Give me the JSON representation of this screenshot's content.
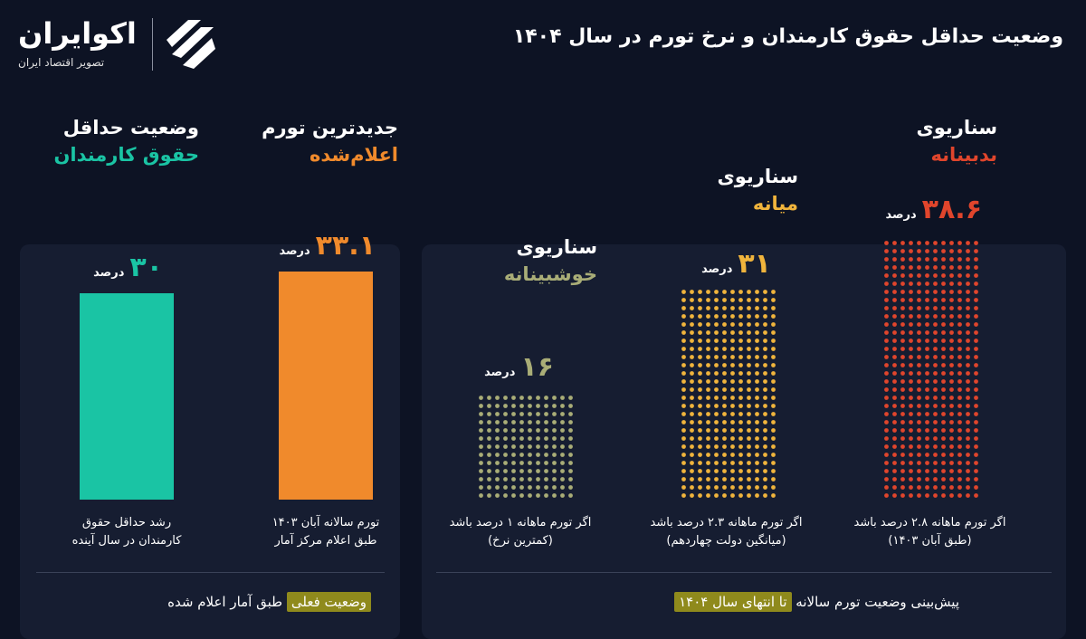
{
  "header": {
    "title": "وضعیت حداقل حقوق کارمندان و نرخ تورم در سال ۱۴۰۴",
    "brand_name": "اکوایران",
    "brand_tagline": "تصویر اقتصاد ایران"
  },
  "colors": {
    "background": "#0d1324",
    "panel": "#161d31",
    "salary": "#1ac4a4",
    "inflation": "#f08a2c",
    "optimistic": "#a9ad77",
    "medium": "#f0b43c",
    "pessimistic": "#e0452c",
    "highlight": "#8f8a1c"
  },
  "chart_data": {
    "type": "bar",
    "unit": "درصد",
    "bars": [
      {
        "key": "salary",
        "heading_line1": "وضعیت حداقل",
        "heading_line2": "حقوق کارمندان",
        "value": 30,
        "value_text": "۳۰",
        "style": "solid",
        "color": "#1ac4a4",
        "caption_line1": "رشد حداقل حقوق",
        "caption_line2": "کارمندان در سال آینده"
      },
      {
        "key": "latest-inflation",
        "heading_line1": "جدیدترین تورم",
        "heading_line2": "اعلام‌شده",
        "value": 33.1,
        "value_text": "۳۳.۱",
        "style": "solid",
        "color": "#f08a2c",
        "caption_line1": "تورم سالانه آبان ۱۴۰۳",
        "caption_line2": "طبق اعلام مرکز آمار"
      },
      {
        "key": "optimistic",
        "heading_line1": "سناریوی",
        "heading_line2": "خوشبینانه",
        "value": 16,
        "value_text": "۱۶",
        "style": "dots",
        "color": "#a9ad77",
        "caption_line1": "اگر تورم ماهانه ۱ درصد باشد",
        "caption_line2": "(کمترین نرخ)"
      },
      {
        "key": "medium",
        "heading_line1": "سناریوی",
        "heading_line2": "میانه",
        "value": 31,
        "value_text": "۳۱",
        "style": "dots",
        "color": "#f0b43c",
        "caption_line1": "اگر تورم ماهانه ۲.۳ درصد باشد",
        "caption_line2": "(میانگین دولت چهاردهم)"
      },
      {
        "key": "pessimistic",
        "heading_line1": "سناریوی",
        "heading_line2": "بدبینانه",
        "value": 38.6,
        "value_text": "۳۸.۶",
        "style": "dots",
        "color": "#e0452c",
        "caption_line1": "اگر تورم ماهانه ۲.۸ درصد باشد",
        "caption_line2": "(طبق آبان ۱۴۰۳)"
      }
    ]
  },
  "footer": {
    "current_prefix": "وضعیت فعلی",
    "current_suffix": "طبق آمار اعلام شده",
    "forecast_prefix": "پیش‌بینی وضعیت تورم سالانه",
    "forecast_suffix": "تا انتهای سال ۱۴۰۴"
  }
}
